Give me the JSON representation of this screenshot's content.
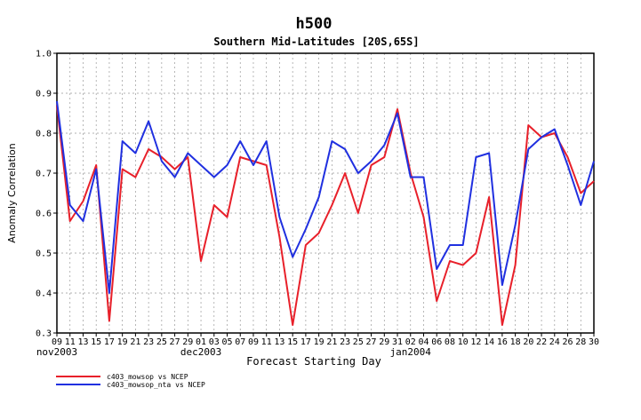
{
  "chart_data": {
    "type": "line",
    "title": "h500",
    "subtitle": "Southern Mid-Latitudes [20S,65S]",
    "xlabel": "Forecast Starting Day",
    "ylabel": "Anomaly Correlation",
    "ylim": [
      0.3,
      1.0
    ],
    "yticks": [
      "0.3",
      "0.4",
      "0.5",
      "0.6",
      "0.7",
      "0.8",
      "0.9",
      "1.0"
    ],
    "xtick_labels": [
      "09",
      "11",
      "13",
      "15",
      "17",
      "19",
      "21",
      "23",
      "25",
      "27",
      "29",
      "01",
      "03",
      "05",
      "07",
      "09",
      "11",
      "13",
      "15",
      "17",
      "19",
      "21",
      "23",
      "25",
      "27",
      "29",
      "31",
      "02",
      "04",
      "06",
      "08",
      "10",
      "12",
      "14",
      "16",
      "18",
      "20",
      "22",
      "24",
      "26",
      "28",
      "30"
    ],
    "month_labels": [
      {
        "label": "nov2003",
        "index": 0
      },
      {
        "label": "dec2003",
        "index": 11
      },
      {
        "label": "jan2004",
        "index": 27
      }
    ],
    "grid": true,
    "legend_position": "bottom-left",
    "series": [
      {
        "name": "c403_mowsop vs NCEP",
        "color": "#e8202a",
        "values": [
          0.87,
          0.58,
          0.63,
          0.72,
          0.33,
          0.71,
          0.69,
          0.76,
          0.74,
          0.71,
          0.74,
          0.48,
          0.62,
          0.59,
          0.74,
          0.73,
          0.72,
          0.54,
          0.32,
          0.52,
          0.55,
          0.62,
          0.7,
          0.6,
          0.72,
          0.74,
          0.86,
          0.7,
          0.59,
          0.38,
          0.48,
          0.47,
          0.5,
          0.64,
          0.32,
          0.47,
          0.82,
          0.79,
          0.8,
          0.74,
          0.65,
          0.68
        ]
      },
      {
        "name": "c403_mowsop_nta vs NCEP",
        "color": "#2030e0",
        "values": [
          0.88,
          0.62,
          0.58,
          0.71,
          0.4,
          0.78,
          0.75,
          0.83,
          0.73,
          0.69,
          0.75,
          0.72,
          0.69,
          0.72,
          0.78,
          0.72,
          0.78,
          0.59,
          0.49,
          0.56,
          0.64,
          0.78,
          0.76,
          0.7,
          0.73,
          0.77,
          0.85,
          0.69,
          0.69,
          0.46,
          0.52,
          0.52,
          0.74,
          0.75,
          0.42,
          0.57,
          0.76,
          0.79,
          0.81,
          0.72,
          0.62,
          0.73
        ]
      }
    ]
  }
}
